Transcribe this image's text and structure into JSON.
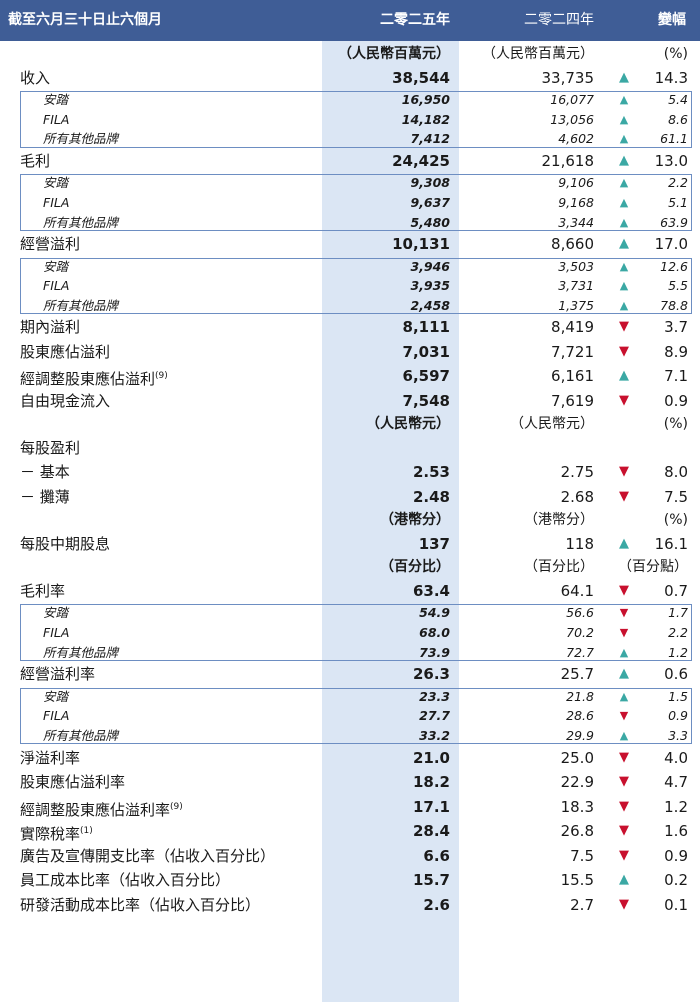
{
  "header": {
    "period": "截至六月三十日止六個月",
    "y2025": "二零二五年",
    "y2024": "二零二四年",
    "change": "變幅"
  },
  "colors": {
    "header_bg": "#3f5d96",
    "highlight_col": "#dbe6f4",
    "box_border": "#6d8ec2",
    "up_arrow": "#3ba8a4",
    "down_arrow": "#c8102e"
  },
  "rows": [
    {
      "type": "unit",
      "v1": "（人民幣百萬元）",
      "v2": "（人民幣百萬元）",
      "chg": "(%)"
    },
    {
      "type": "major",
      "label": "收入",
      "v1": "38,544",
      "v2": "33,735",
      "dir": "up",
      "chg": "14.3"
    },
    {
      "type": "minor",
      "label": "安踏",
      "v1": "16,950",
      "v2": "16,077",
      "dir": "up",
      "chg": "5.4"
    },
    {
      "type": "minor",
      "label": "FILA",
      "v1": "14,182",
      "v2": "13,056",
      "dir": "up",
      "chg": "8.6"
    },
    {
      "type": "minor",
      "label": "所有其他品牌",
      "v1": "7,412",
      "v2": "4,602",
      "dir": "up",
      "chg": "61.1"
    },
    {
      "type": "major",
      "label": "毛利",
      "v1": "24,425",
      "v2": "21,618",
      "dir": "up",
      "chg": "13.0"
    },
    {
      "type": "minor",
      "label": "安踏",
      "v1": "9,308",
      "v2": "9,106",
      "dir": "up",
      "chg": "2.2"
    },
    {
      "type": "minor",
      "label": "FILA",
      "v1": "9,637",
      "v2": "9,168",
      "dir": "up",
      "chg": "5.1"
    },
    {
      "type": "minor",
      "label": "所有其他品牌",
      "v1": "5,480",
      "v2": "3,344",
      "dir": "up",
      "chg": "63.9"
    },
    {
      "type": "major",
      "label": "經營溢利",
      "v1": "10,131",
      "v2": "8,660",
      "dir": "up",
      "chg": "17.0"
    },
    {
      "type": "minor",
      "label": "安踏",
      "v1": "3,946",
      "v2": "3,503",
      "dir": "up",
      "chg": "12.6"
    },
    {
      "type": "minor",
      "label": "FILA",
      "v1": "3,935",
      "v2": "3,731",
      "dir": "up",
      "chg": "5.5"
    },
    {
      "type": "minor",
      "label": "所有其他品牌",
      "v1": "2,458",
      "v2": "1,375",
      "dir": "up",
      "chg": "78.8"
    },
    {
      "type": "major",
      "label": "期內溢利",
      "v1": "8,111",
      "v2": "8,419",
      "dir": "down",
      "chg": "3.7"
    },
    {
      "type": "major",
      "label": "股東應佔溢利",
      "v1": "7,031",
      "v2": "7,721",
      "dir": "down",
      "chg": "8.9"
    },
    {
      "type": "major",
      "label": "經調整股東應佔溢利",
      "sup": "(9)",
      "v1": "6,597",
      "v2": "6,161",
      "dir": "up",
      "chg": "7.1"
    },
    {
      "type": "major",
      "label": "自由現金流入",
      "v1": "7,548",
      "v2": "7,619",
      "dir": "down",
      "chg": "0.9"
    },
    {
      "type": "unit",
      "v1": "（人民幣元）",
      "v2": "（人民幣元）",
      "chg": "(%)"
    },
    {
      "type": "major",
      "label": "每股盈利",
      "v1": "",
      "v2": "",
      "chg": ""
    },
    {
      "type": "major",
      "label": "－ 基本",
      "v1": "2.53",
      "v2": "2.75",
      "dir": "down",
      "chg": "8.0"
    },
    {
      "type": "major",
      "label": "－ 攤薄",
      "v1": "2.48",
      "v2": "2.68",
      "dir": "down",
      "chg": "7.5"
    },
    {
      "type": "unit",
      "v1": "（港幣分）",
      "v2": "（港幣分）",
      "chg": "(%)"
    },
    {
      "type": "major",
      "label": "每股中期股息",
      "v1": "137",
      "v2": "118",
      "dir": "up",
      "chg": "16.1"
    },
    {
      "type": "unit",
      "v1": "（百分比）",
      "v2": "（百分比）",
      "chg": "（百分點）"
    },
    {
      "type": "major",
      "label": "毛利率",
      "v1": "63.4",
      "v2": "64.1",
      "dir": "down",
      "chg": "0.7"
    },
    {
      "type": "minor",
      "label": "安踏",
      "v1": "54.9",
      "v2": "56.6",
      "dir": "down",
      "chg": "1.7"
    },
    {
      "type": "minor",
      "label": "FILA",
      "v1": "68.0",
      "v2": "70.2",
      "dir": "down",
      "chg": "2.2"
    },
    {
      "type": "minor",
      "label": "所有其他品牌",
      "v1": "73.9",
      "v2": "72.7",
      "dir": "up",
      "chg": "1.2"
    },
    {
      "type": "major",
      "label": "經營溢利率",
      "v1": "26.3",
      "v2": "25.7",
      "dir": "up",
      "chg": "0.6"
    },
    {
      "type": "minor",
      "label": "安踏",
      "v1": "23.3",
      "v2": "21.8",
      "dir": "up",
      "chg": "1.5"
    },
    {
      "type": "minor",
      "label": "FILA",
      "v1": "27.7",
      "v2": "28.6",
      "dir": "down",
      "chg": "0.9"
    },
    {
      "type": "minor",
      "label": "所有其他品牌",
      "v1": "33.2",
      "v2": "29.9",
      "dir": "up",
      "chg": "3.3"
    },
    {
      "type": "major",
      "label": "淨溢利率",
      "v1": "21.0",
      "v2": "25.0",
      "dir": "down",
      "chg": "4.0"
    },
    {
      "type": "major",
      "label": "股東應佔溢利率",
      "v1": "18.2",
      "v2": "22.9",
      "dir": "down",
      "chg": "4.7"
    },
    {
      "type": "major",
      "label": "經調整股東應佔溢利率",
      "sup": "(9)",
      "v1": "17.1",
      "v2": "18.3",
      "dir": "down",
      "chg": "1.2"
    },
    {
      "type": "major",
      "label": "實際稅率",
      "sup": "(1)",
      "v1": "28.4",
      "v2": "26.8",
      "dir": "down",
      "chg": "1.6"
    },
    {
      "type": "major",
      "label": "廣告及宣傳開支比率（佔收入百分比）",
      "v1": "6.6",
      "v2": "7.5",
      "dir": "down",
      "chg": "0.9"
    },
    {
      "type": "major",
      "label": "員工成本比率（佔收入百分比）",
      "v1": "15.7",
      "v2": "15.5",
      "dir": "up",
      "chg": "0.2"
    },
    {
      "type": "major",
      "label": "研發活動成本比率（佔收入百分比）",
      "v1": "2.6",
      "v2": "2.7",
      "dir": "down",
      "chg": "0.1"
    }
  ]
}
